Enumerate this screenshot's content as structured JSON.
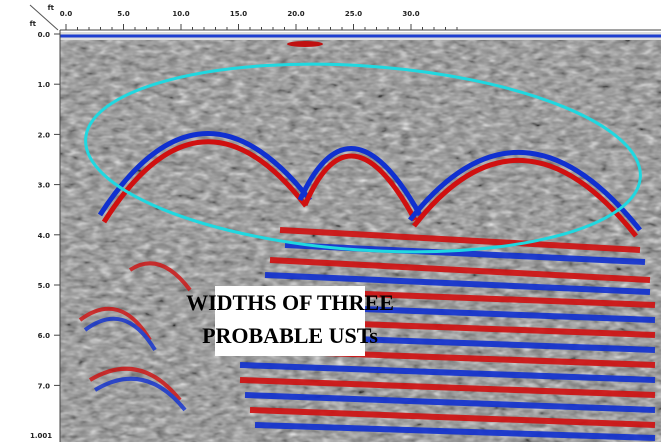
{
  "top_axis": {
    "unit": "ft",
    "labels": [
      "0.0",
      "5.0",
      "10.0",
      "15.0",
      "20.0",
      "25.0",
      "30.0"
    ]
  },
  "left_axis": {
    "unit": "ft",
    "labels": [
      "0.0",
      "1.0",
      "2.0",
      "3.0",
      "4.0",
      "5.0",
      "6.0",
      "7.0"
    ],
    "corner_label": "1.001"
  },
  "annotation": {
    "lines": [
      "WIDTHS OF THREE",
      "PROBABLE USTs"
    ]
  }
}
